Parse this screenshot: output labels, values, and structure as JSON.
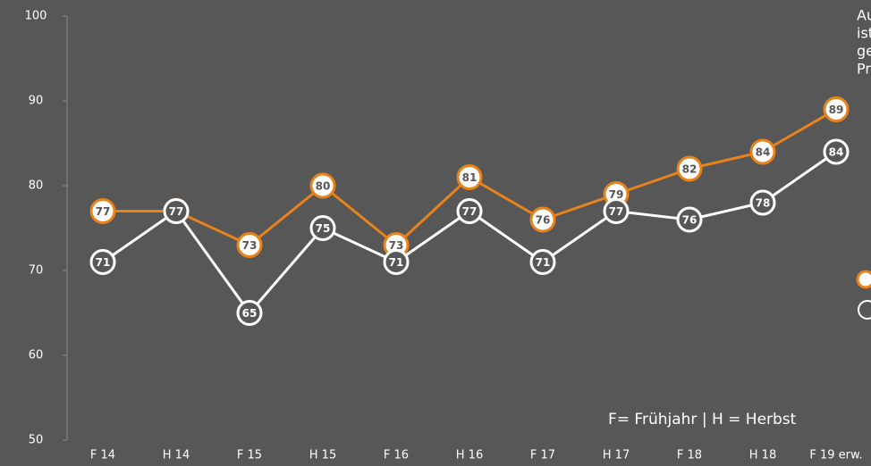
{
  "chart_data": {
    "type": "line",
    "categories": [
      "F 14",
      "H 14",
      "F 15",
      "H 15",
      "F 16",
      "H 16",
      "F 17",
      "H 17",
      "F 18",
      "H 18",
      "F 19 erw."
    ],
    "series": [
      {
        "color": "#e8831c",
        "values": [
          77,
          77,
          73,
          80,
          73,
          81,
          76,
          79,
          82,
          84,
          89
        ]
      },
      {
        "color": "#ffffff",
        "values": [
          71,
          77,
          65,
          75,
          71,
          77,
          71,
          77,
          76,
          78,
          84
        ]
      }
    ],
    "ylim": [
      50,
      100
    ],
    "yticks": [
      50,
      60,
      70,
      80,
      90,
      100
    ],
    "annotation": "F= Frühjahr | H = Herbst",
    "side_text": [
      "Au",
      "ist",
      "ge",
      "Pr"
    ]
  }
}
